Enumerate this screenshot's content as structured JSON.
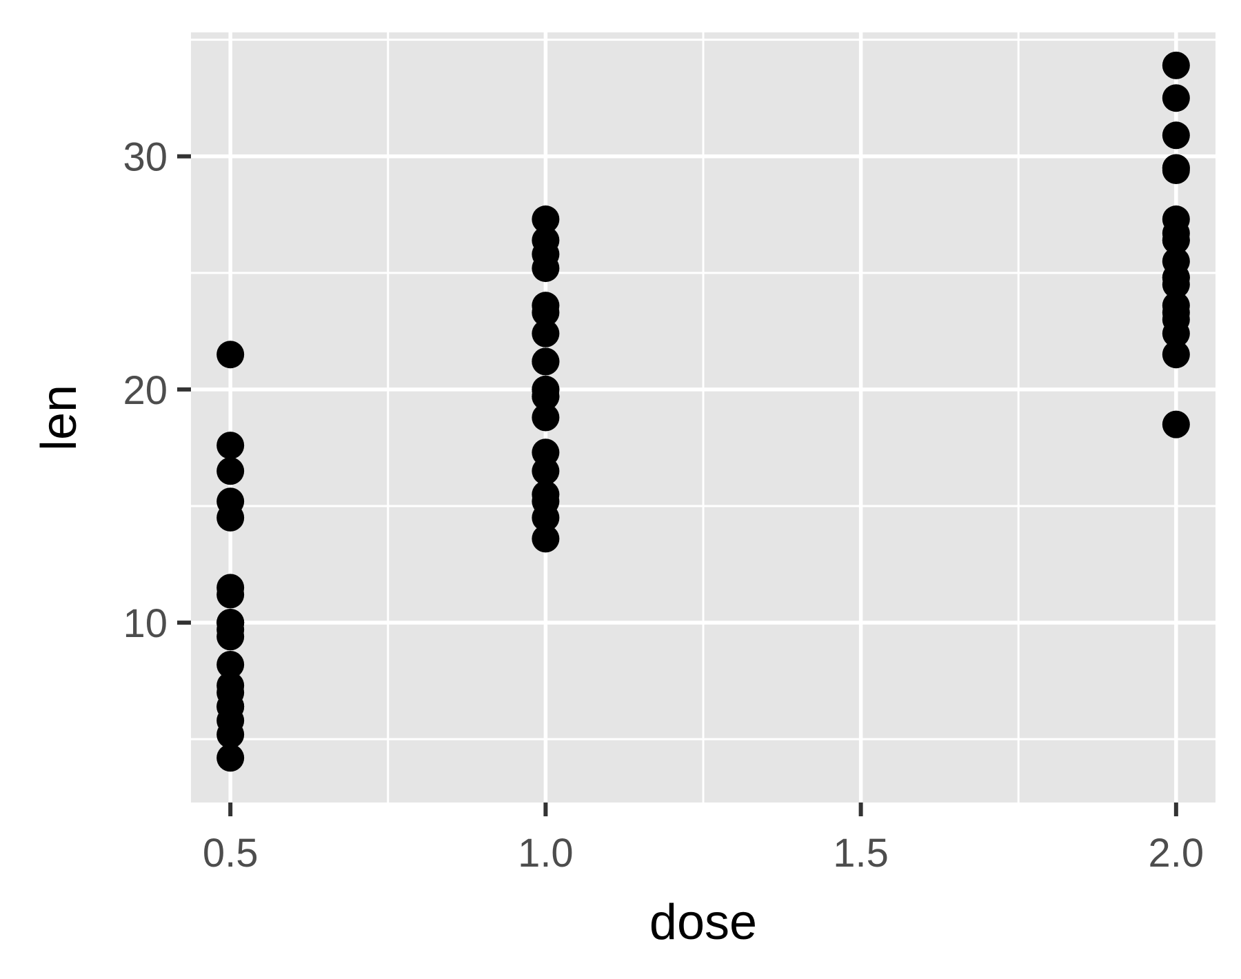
{
  "chart_data": {
    "type": "scatter",
    "title": "",
    "xlabel": "dose",
    "ylabel": "len",
    "xlim": [
      0.4375,
      2.0625
    ],
    "ylim": [
      2.285,
      35.315
    ],
    "x_ticks": [
      0.5,
      1.0,
      1.5,
      2.0
    ],
    "x_tick_labels": [
      "0.5",
      "1.0",
      "1.5",
      "2.0"
    ],
    "y_ticks": [
      10,
      20,
      30
    ],
    "y_tick_labels": [
      "10",
      "20",
      "30"
    ],
    "grid": true,
    "legend": "none",
    "series": [
      {
        "x": [
          0.5,
          0.5,
          0.5,
          0.5,
          0.5,
          0.5,
          0.5,
          0.5,
          0.5,
          0.5,
          0.5,
          0.5,
          0.5,
          0.5,
          0.5,
          0.5,
          0.5,
          0.5,
          0.5,
          0.5,
          1.0,
          1.0,
          1.0,
          1.0,
          1.0,
          1.0,
          1.0,
          1.0,
          1.0,
          1.0,
          1.0,
          1.0,
          1.0,
          1.0,
          1.0,
          1.0,
          1.0,
          1.0,
          1.0,
          1.0,
          2.0,
          2.0,
          2.0,
          2.0,
          2.0,
          2.0,
          2.0,
          2.0,
          2.0,
          2.0,
          2.0,
          2.0,
          2.0,
          2.0,
          2.0,
          2.0,
          2.0,
          2.0,
          2.0,
          2.0
        ],
        "y": [
          4.2,
          5.2,
          5.8,
          6.4,
          7.0,
          7.3,
          8.2,
          9.4,
          9.7,
          10.0,
          11.2,
          11.5,
          14.5,
          15.2,
          16.5,
          17.6,
          21.5,
          6.4,
          10.0,
          10.0,
          13.6,
          14.5,
          15.2,
          15.5,
          16.5,
          17.3,
          18.8,
          19.7,
          20.0,
          21.2,
          22.4,
          23.3,
          23.6,
          25.2,
          25.8,
          26.4,
          27.3,
          19.7,
          20.0,
          21.2,
          18.5,
          21.5,
          22.4,
          23.0,
          23.6,
          24.5,
          24.8,
          25.5,
          26.4,
          26.7,
          27.3,
          29.4,
          29.5,
          30.9,
          32.5,
          33.9,
          23.3,
          24.8,
          26.4,
          29.5
        ],
        "color": "#000000"
      }
    ],
    "colors": {
      "panel_background": "#e5e5e5",
      "grid_major": "#ffffff",
      "point": "#000000",
      "tick_text": "#4d4d4d",
      "tick_mark": "#333333"
    }
  }
}
